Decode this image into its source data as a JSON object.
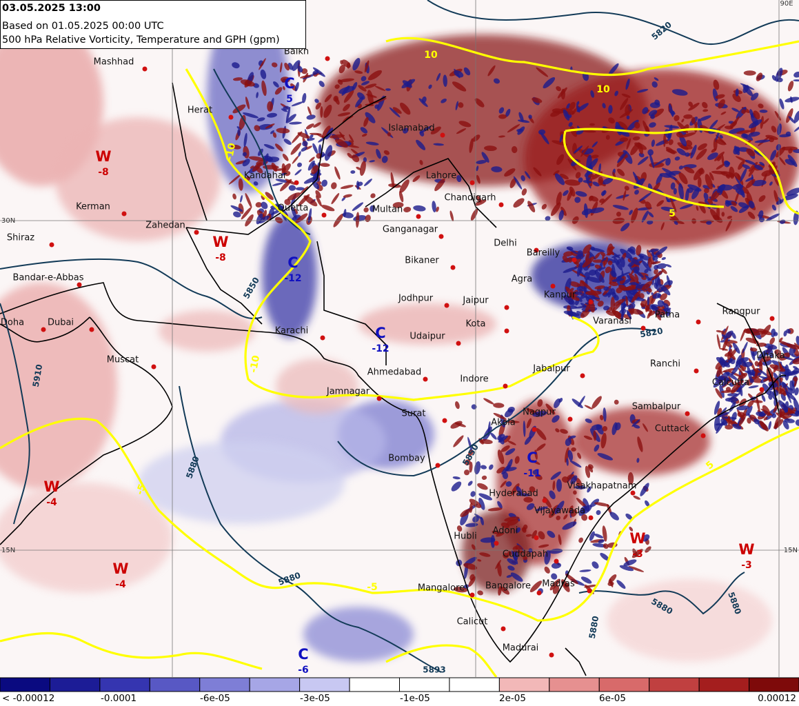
{
  "header": {
    "lines": [
      "03.05.2025 13:00",
      "Based on 01.05.2025 00:00 UTC",
      "500 hPa Relative Vorticity, Temperature and GPH (gpm)"
    ]
  },
  "cities": [
    "Mashhad",
    "Balkh",
    "Herat",
    "Kandahar",
    "Quetta",
    "Kerman",
    "Zahedan",
    "Shiraz",
    "Bandar-e-Abbas",
    "Doha",
    "Dubai",
    "Muscat",
    "Karachi",
    "Multan",
    "Ganganagar",
    "Lahore",
    "Chandigarh",
    "Delhi",
    "Bareilly",
    "Bikaner",
    "Agra",
    "Jodhpur",
    "Jaipur",
    "Kanpur",
    "Kota",
    "Varanasi",
    "Patna",
    "Rangpur",
    "Udaipur",
    "Ahmedabad",
    "Indore",
    "Jabalpur",
    "Ranchi",
    "Calcutta",
    "Dhaka",
    "Jamnagar",
    "Surat",
    "Sambalpur",
    "Akola",
    "Nagpur",
    "Cuttack",
    "Bombay",
    "Hyderabad",
    "Visakhapatnam",
    "Vijayawada",
    "Hubli",
    "Adoni",
    "Cuddapah",
    "Mangalore",
    "Bangalore",
    "Madras",
    "Calicut",
    "Madurai",
    "Islamabad"
  ],
  "systems": [
    {
      "letter": "W",
      "value": -8
    },
    {
      "letter": "W",
      "value": -8
    },
    {
      "letter": "C",
      "value": -12
    },
    {
      "letter": "C",
      "value": 5
    },
    {
      "letter": "C",
      "value": -12
    },
    {
      "letter": "C",
      "value": -11
    },
    {
      "letter": "W",
      "value": -4
    },
    {
      "letter": "W",
      "value": -4
    },
    {
      "letter": "W",
      "value": -3
    },
    {
      "letter": "W",
      "value": -3
    },
    {
      "letter": "C",
      "value": -6
    }
  ],
  "gph_labels": [
    5820,
    5820,
    5850,
    5850,
    5880,
    5880,
    5880,
    5880,
    5880,
    5910,
    5893
  ],
  "temp_labels": [
    -10,
    -10,
    -5,
    -5,
    5,
    5,
    10,
    10
  ],
  "grid_labels": [
    "30N",
    "15N",
    "15N",
    "90E"
  ],
  "colorbar": {
    "labels": [
      "< -0.00012",
      "-0.0001",
      "-6e-05",
      "-3e-05",
      "-1e-05",
      "2e-05",
      "6e-05",
      "0.00012"
    ]
  }
}
